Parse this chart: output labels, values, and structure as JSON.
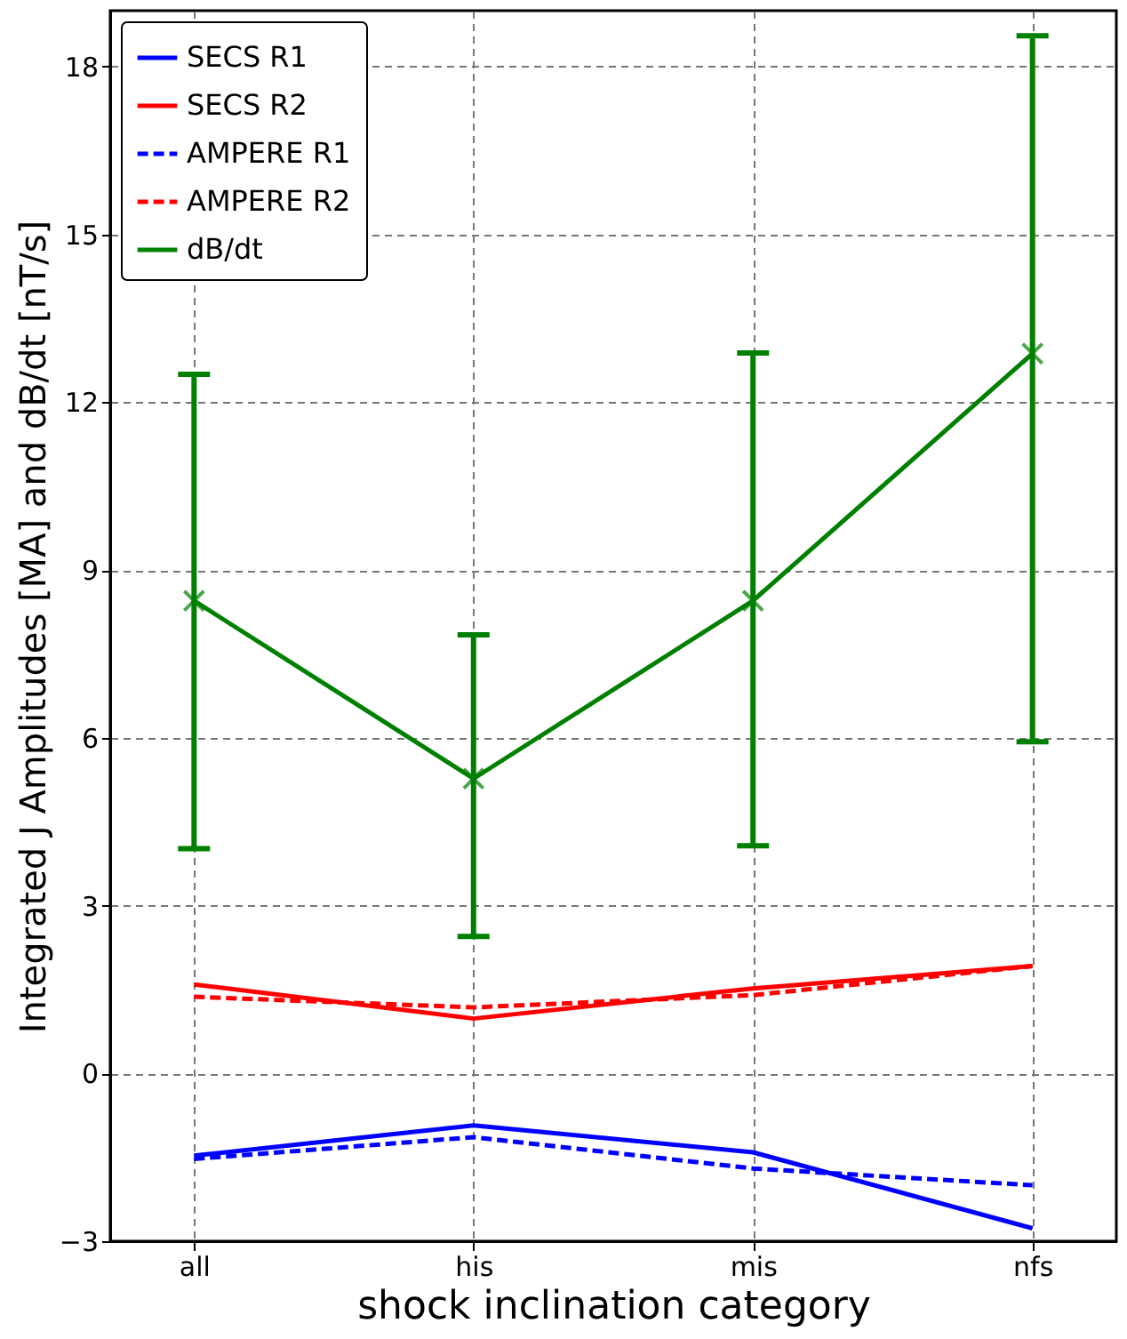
{
  "chart_data": {
    "type": "line",
    "xlabel": "shock inclination category",
    "ylabel": "Integrated J Amplitudes [MA] and dB/dt [nT/s]",
    "categories": [
      "all",
      "his",
      "mis",
      "nfs"
    ],
    "series": [
      {
        "name": "SECS R1",
        "color": "#0000ff",
        "line_style": "solid",
        "marker": "none",
        "values": [
          -1.47,
          -0.93,
          -1.41,
          -2.77
        ]
      },
      {
        "name": "SECS R2",
        "color": "#ff0000",
        "line_style": "solid",
        "marker": "none",
        "values": [
          1.59,
          0.98,
          1.52,
          1.92
        ]
      },
      {
        "name": "AMPERE R1",
        "color": "#0000ff",
        "line_style": "dashed",
        "marker": "none",
        "values": [
          -1.53,
          -1.14,
          -1.7,
          -2.0
        ]
      },
      {
        "name": "AMPERE R2",
        "color": "#ff0000",
        "line_style": "dashed",
        "marker": "none",
        "values": [
          1.37,
          1.18,
          1.4,
          1.92
        ]
      },
      {
        "name": "dB/dt",
        "color": "#008000",
        "line_style": "solid",
        "marker": "cross",
        "values": [
          8.45,
          5.27,
          8.45,
          12.87
        ],
        "errors": [
          [
            4.02,
            12.5
          ],
          [
            2.45,
            7.84
          ],
          [
            4.07,
            12.88
          ],
          [
            5.93,
            18.55
          ]
        ]
      }
    ],
    "ylim": [
      -3,
      19
    ],
    "yticks": [
      -3,
      0,
      3,
      6,
      9,
      12,
      15,
      18
    ],
    "grid": true,
    "legend": "top left"
  }
}
